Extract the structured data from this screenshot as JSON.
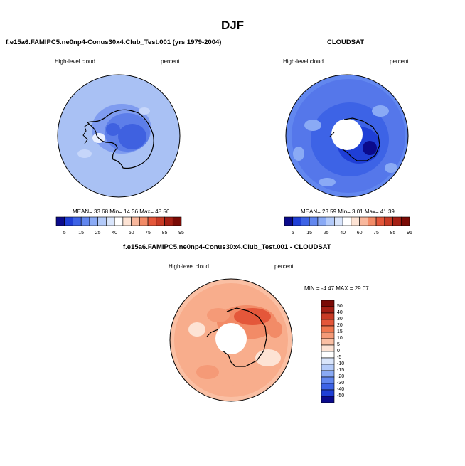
{
  "figure_title": "DJF",
  "panels": [
    {
      "id": "model",
      "header": "f.e15a6.FAMIPC5.ne0np4-Conus30x4.Club_Test.001 (yrs 1979-2004)",
      "left_label": "High-level cloud",
      "right_label": "percent",
      "stats_text": "MEAN=  33.68  Min=  14.36  Max=  48.56",
      "stats": {
        "mean": 33.68,
        "min": 14.36,
        "max": 48.56
      }
    },
    {
      "id": "obs",
      "header": "CLOUDSAT",
      "left_label": "High-level cloud",
      "right_label": "percent",
      "stats_text": "MEAN=  23.59  Min=   3.01  Max=  41.39",
      "stats": {
        "mean": 23.59,
        "min": 3.01,
        "max": 41.39
      }
    },
    {
      "id": "diff",
      "header": "f.e15a6.FAMIPC5.ne0np4-Conus30x4.Club_Test.001 - CLOUDSAT",
      "left_label": "High-level cloud",
      "right_label": "percent",
      "stats_text": "MIN = -4.47  MAX = 29.07",
      "stats": {
        "min": -4.47,
        "max": 29.07
      }
    }
  ],
  "colorbar_abs": {
    "labels": [
      "5",
      "15",
      "25",
      "40",
      "60",
      "75",
      "85",
      "95"
    ],
    "colors": [
      "#0a0a8c",
      "#1f3fd6",
      "#3d63e6",
      "#6287ef",
      "#8aaaf5",
      "#b3caf9",
      "#d9e5fb",
      "#ffffff",
      "#fde3d4",
      "#f8b79c",
      "#f28b67",
      "#e4573a",
      "#c93b25",
      "#a51f14",
      "#7a0a05"
    ]
  },
  "colorbar_diff": {
    "labels": [
      "50",
      "40",
      "30",
      "20",
      "15",
      "10",
      "5",
      "0",
      "-5",
      "-10",
      "-15",
      "-20",
      "-30",
      "-40",
      "-50"
    ],
    "colors": [
      "#7a0a05",
      "#a51f14",
      "#c93b25",
      "#e4573a",
      "#f0774f",
      "#f59a77",
      "#fabfa3",
      "#fde3d4",
      "#ffffff",
      "#d9e5fb",
      "#b3caf9",
      "#8aaaf5",
      "#6287ef",
      "#3d63e6",
      "#1f3fd6",
      "#0a0a8c"
    ]
  }
}
